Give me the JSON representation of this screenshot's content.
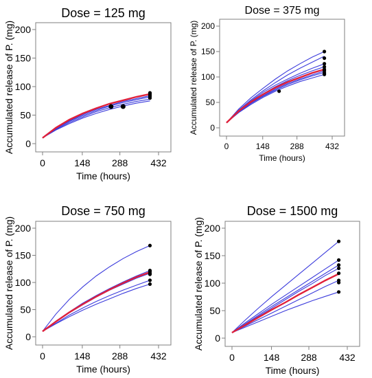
{
  "figure": {
    "colors": {
      "axis": "#7f7f7f",
      "series": "#3b3bdc",
      "mean": "#e0203a",
      "points": "#000000"
    }
  },
  "chart_data": [
    {
      "type": "line",
      "title": "Dose = 125 mg",
      "xlabel": "Time (hours)",
      "ylabel": "Accumulated release of P. (mg)",
      "xlim": [
        0,
        432
      ],
      "ylim": [
        0,
        200
      ],
      "xticks": [
        "0",
        "148",
        "288",
        "432"
      ],
      "yticks": [
        "0",
        "50",
        "100",
        "150",
        "200"
      ],
      "mean_curve": {
        "x": [
          0,
          50,
          100,
          150,
          200,
          250,
          300,
          350,
          400
        ],
        "y": [
          10,
          28,
          42,
          53,
          62,
          70,
          76,
          82,
          87
        ]
      },
      "series": [
        {
          "x": [
            0,
            50,
            100,
            150,
            200,
            250,
            300,
            350,
            400
          ],
          "y": [
            10,
            24,
            35,
            45,
            53,
            60,
            66,
            71,
            75
          ]
        },
        {
          "x": [
            0,
            50,
            100,
            150,
            200,
            250,
            300,
            350,
            400
          ],
          "y": [
            10,
            25,
            37,
            47,
            56,
            63,
            69,
            74,
            78
          ]
        },
        {
          "x": [
            0,
            50,
            100,
            150,
            200,
            250,
            300,
            350,
            400
          ],
          "y": [
            10,
            26,
            39,
            49,
            58,
            66,
            72,
            77,
            82
          ]
        },
        {
          "x": [
            0,
            50,
            100,
            150,
            200,
            250,
            300,
            350,
            400
          ],
          "y": [
            10,
            27,
            40,
            51,
            60,
            67,
            74,
            79,
            84
          ]
        },
        {
          "x": [
            0,
            50,
            100,
            150,
            200,
            250,
            300,
            350,
            400
          ],
          "y": [
            10,
            28,
            42,
            53,
            62,
            70,
            76,
            82,
            87
          ]
        }
      ],
      "points": [
        {
          "x": 255,
          "y": 65
        },
        {
          "x": 300,
          "y": 65
        },
        {
          "x": 400,
          "y": 80
        },
        {
          "x": 400,
          "y": 83
        },
        {
          "x": 400,
          "y": 85
        },
        {
          "x": 400,
          "y": 87
        },
        {
          "x": 400,
          "y": 89
        }
      ]
    },
    {
      "type": "line",
      "title": "Dose = 375 mg",
      "xlabel": "Time (hours)",
      "ylabel": "Accumulated release of P. (mg)",
      "xlim": [
        0,
        432
      ],
      "ylim": [
        0,
        200
      ],
      "xticks": [
        "0",
        "148",
        "288",
        "432"
      ],
      "yticks": [
        "0",
        "50",
        "100",
        "150",
        "200"
      ],
      "mean_curve": {
        "x": [
          0,
          50,
          100,
          150,
          200,
          250,
          300,
          350,
          400
        ],
        "y": [
          10,
          33,
          51,
          66,
          79,
          90,
          99,
          108,
          115
        ]
      },
      "series": [
        {
          "x": [
            0,
            50,
            100,
            150,
            200,
            250,
            300,
            350,
            400
          ],
          "y": [
            10,
            35,
            55,
            73,
            89,
            104,
            117,
            129,
            141
          ]
        },
        {
          "x": [
            0,
            50,
            100,
            150,
            200,
            250,
            300,
            350,
            400
          ],
          "y": [
            10,
            37,
            59,
            78,
            96,
            112,
            126,
            139,
            150
          ]
        },
        {
          "x": [
            0,
            50,
            100,
            150,
            200,
            250,
            300,
            350,
            400
          ],
          "y": [
            10,
            32,
            50,
            65,
            78,
            89,
            99,
            107,
            115
          ]
        },
        {
          "x": [
            0,
            50,
            100,
            150,
            200,
            250,
            300,
            350,
            400
          ],
          "y": [
            10,
            31,
            48,
            62,
            74,
            85,
            94,
            102,
            109
          ]
        },
        {
          "x": [
            0,
            50,
            100,
            150,
            200,
            250,
            300,
            350,
            400
          ],
          "y": [
            10,
            30,
            46,
            60,
            72,
            82,
            91,
            98,
            105
          ]
        },
        {
          "x": [
            0,
            50,
            100,
            150,
            200,
            250,
            300,
            350,
            400
          ],
          "y": [
            10,
            33,
            52,
            67,
            81,
            93,
            103,
            112,
            120
          ]
        },
        {
          "x": [
            0,
            50,
            100,
            150,
            200,
            250,
            300,
            350,
            400
          ],
          "y": [
            10,
            34,
            53,
            70,
            84,
            96,
            107,
            117,
            126
          ]
        },
        {
          "x": [
            0,
            50,
            100,
            150,
            200,
            250,
            300,
            350,
            400
          ],
          "y": [
            10,
            31,
            49,
            63,
            76,
            87,
            96,
            104,
            112
          ]
        }
      ],
      "points": [
        {
          "x": 215,
          "y": 72
        },
        {
          "x": 400,
          "y": 150
        },
        {
          "x": 400,
          "y": 137
        },
        {
          "x": 400,
          "y": 126
        },
        {
          "x": 400,
          "y": 120
        },
        {
          "x": 400,
          "y": 115
        },
        {
          "x": 400,
          "y": 112
        },
        {
          "x": 400,
          "y": 108
        },
        {
          "x": 400,
          "y": 105
        }
      ]
    },
    {
      "type": "line",
      "title": "Dose = 750 mg",
      "xlabel": "Time (hours)",
      "ylabel": "Accumulated release of P. (mg)",
      "xlim": [
        0,
        432
      ],
      "ylim": [
        0,
        200
      ],
      "xticks": [
        "0",
        "148",
        "288",
        "432"
      ],
      "yticks": [
        "0",
        "50",
        "100",
        "150",
        "200"
      ],
      "mean_curve": {
        "x": [
          0,
          50,
          100,
          150,
          200,
          250,
          300,
          350,
          400
        ],
        "y": [
          10,
          28,
          45,
          60,
          74,
          87,
          99,
          110,
          119
        ]
      },
      "series": [
        {
          "x": [
            0,
            50,
            100,
            150,
            200,
            250,
            300,
            350,
            400
          ],
          "y": [
            10,
            42,
            69,
            92,
            112,
            129,
            144,
            157,
            168
          ]
        },
        {
          "x": [
            0,
            50,
            100,
            150,
            200,
            250,
            300,
            350,
            400
          ],
          "y": [
            10,
            29,
            46,
            62,
            76,
            89,
            101,
            112,
            122
          ]
        },
        {
          "x": [
            0,
            50,
            100,
            150,
            200,
            250,
            300,
            350,
            400
          ],
          "y": [
            10,
            28,
            44,
            59,
            73,
            86,
            97,
            108,
            117
          ]
        },
        {
          "x": [
            0,
            50,
            100,
            150,
            200,
            250,
            300,
            350,
            400
          ],
          "y": [
            10,
            25,
            40,
            53,
            65,
            76,
            86,
            95,
            104
          ]
        },
        {
          "x": [
            0,
            50,
            100,
            150,
            200,
            250,
            300,
            350,
            400
          ],
          "y": [
            10,
            24,
            37,
            49,
            60,
            70,
            80,
            89,
            97
          ]
        }
      ],
      "points": [
        {
          "x": 400,
          "y": 168
        },
        {
          "x": 400,
          "y": 122
        },
        {
          "x": 400,
          "y": 120
        },
        {
          "x": 400,
          "y": 117
        },
        {
          "x": 400,
          "y": 115
        },
        {
          "x": 400,
          "y": 104
        },
        {
          "x": 400,
          "y": 97
        }
      ]
    },
    {
      "type": "line",
      "title": "Dose = 1500 mg",
      "xlabel": "Time (hours)",
      "ylabel": "Accumulated release of P. (mg)",
      "xlim": [
        0,
        432
      ],
      "ylim": [
        0,
        200
      ],
      "xticks": [
        "0",
        "148",
        "288",
        "432"
      ],
      "yticks": [
        "0",
        "50",
        "100",
        "150",
        "200"
      ],
      "mean_curve": {
        "x": [
          0,
          50,
          100,
          150,
          200,
          250,
          300,
          350,
          400
        ],
        "y": [
          10,
          24,
          38,
          52,
          65,
          79,
          92,
          105,
          117
        ]
      },
      "series": [
        {
          "x": [
            0,
            50,
            100,
            150,
            200,
            250,
            300,
            350,
            400
          ],
          "y": [
            10,
            33,
            55,
            76,
            96,
            116,
            136,
            156,
            176
          ]
        },
        {
          "x": [
            0,
            50,
            100,
            150,
            200,
            250,
            300,
            350,
            400
          ],
          "y": [
            10,
            28,
            45,
            62,
            78,
            94,
            110,
            126,
            142
          ]
        },
        {
          "x": [
            0,
            50,
            100,
            150,
            200,
            250,
            300,
            350,
            400
          ],
          "y": [
            10,
            26,
            42,
            58,
            73,
            88,
            103,
            118,
            133
          ]
        },
        {
          "x": [
            0,
            50,
            100,
            150,
            200,
            250,
            300,
            350,
            400
          ],
          "y": [
            10,
            25,
            40,
            55,
            70,
            85,
            99,
            114,
            127
          ]
        },
        {
          "x": [
            0,
            50,
            100,
            150,
            200,
            250,
            300,
            350,
            400
          ],
          "y": [
            10,
            22,
            34,
            46,
            58,
            70,
            82,
            94,
            105
          ]
        },
        {
          "x": [
            0,
            50,
            100,
            150,
            200,
            250,
            300,
            350,
            400
          ],
          "y": [
            10,
            20,
            30,
            40,
            50,
            59,
            68,
            76,
            84
          ]
        }
      ],
      "points": [
        {
          "x": 400,
          "y": 176
        },
        {
          "x": 400,
          "y": 142
        },
        {
          "x": 400,
          "y": 133
        },
        {
          "x": 400,
          "y": 127
        },
        {
          "x": 400,
          "y": 118
        },
        {
          "x": 400,
          "y": 105
        },
        {
          "x": 400,
          "y": 101
        },
        {
          "x": 400,
          "y": 84
        }
      ]
    }
  ]
}
